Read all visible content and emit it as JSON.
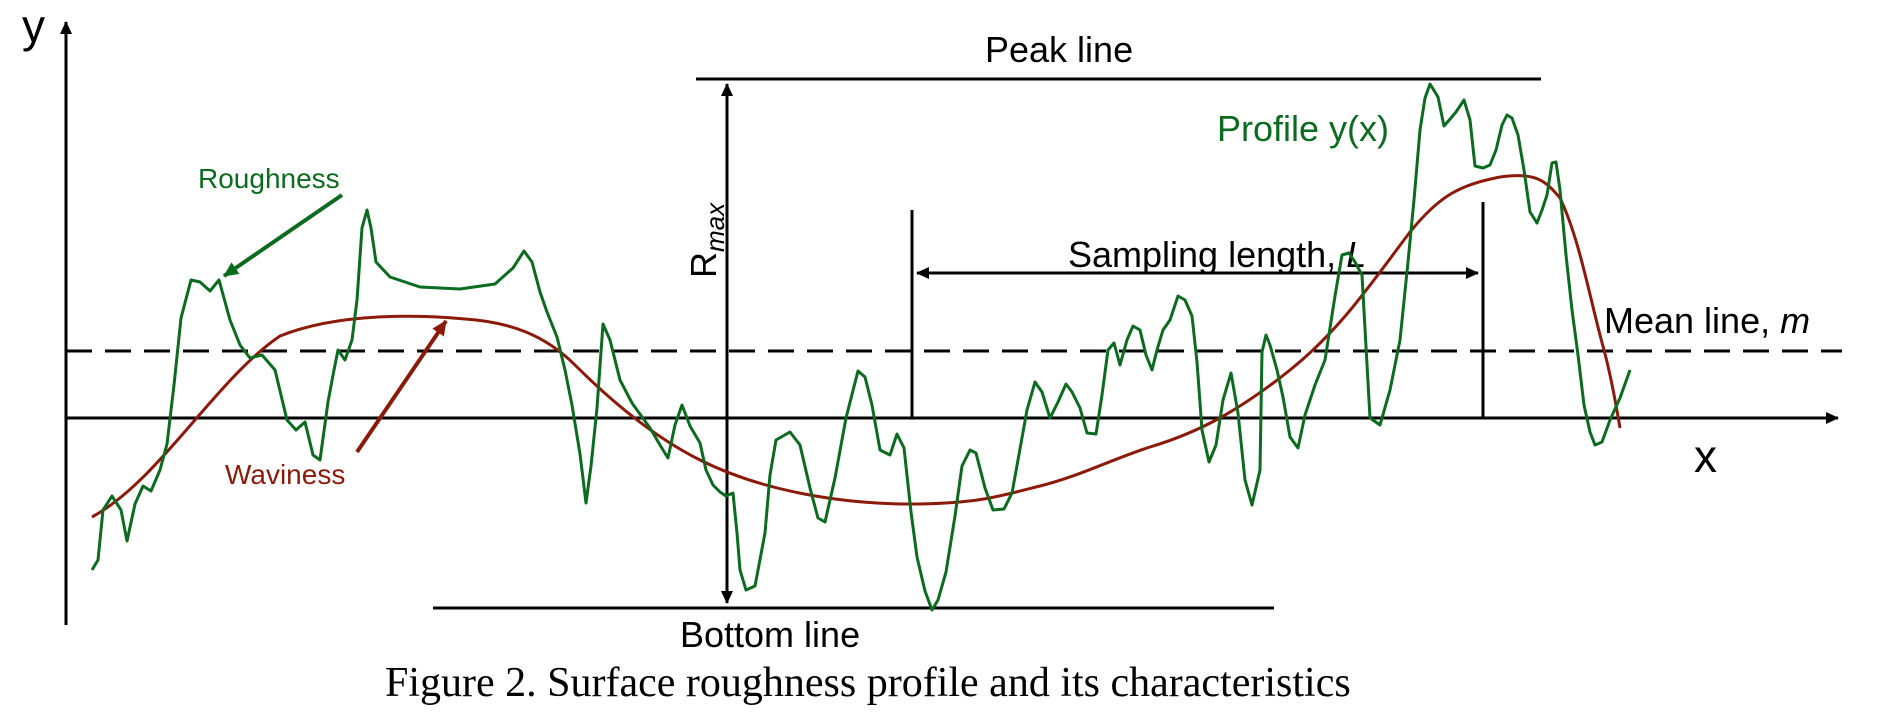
{
  "axes": {
    "y_label": "y",
    "x_label": "x"
  },
  "labels": {
    "peak_line": "Peak line",
    "bottom_line": "Bottom line",
    "profile": "Profile y(x)",
    "roughness": "Roughness",
    "waviness": "Waviness",
    "rmax_main": "R",
    "rmax_sub": "max",
    "sampling_length_prefix": "Sampling length, ",
    "sampling_length_symbol": "L",
    "mean_line_prefix": "Mean line, ",
    "mean_line_symbol": "m"
  },
  "caption": "Figure 2. Surface roughness profile and its characteristics",
  "colors": {
    "profile": "#0b6b1e",
    "waviness": "#8b1a0a",
    "lines": "#000000"
  }
}
